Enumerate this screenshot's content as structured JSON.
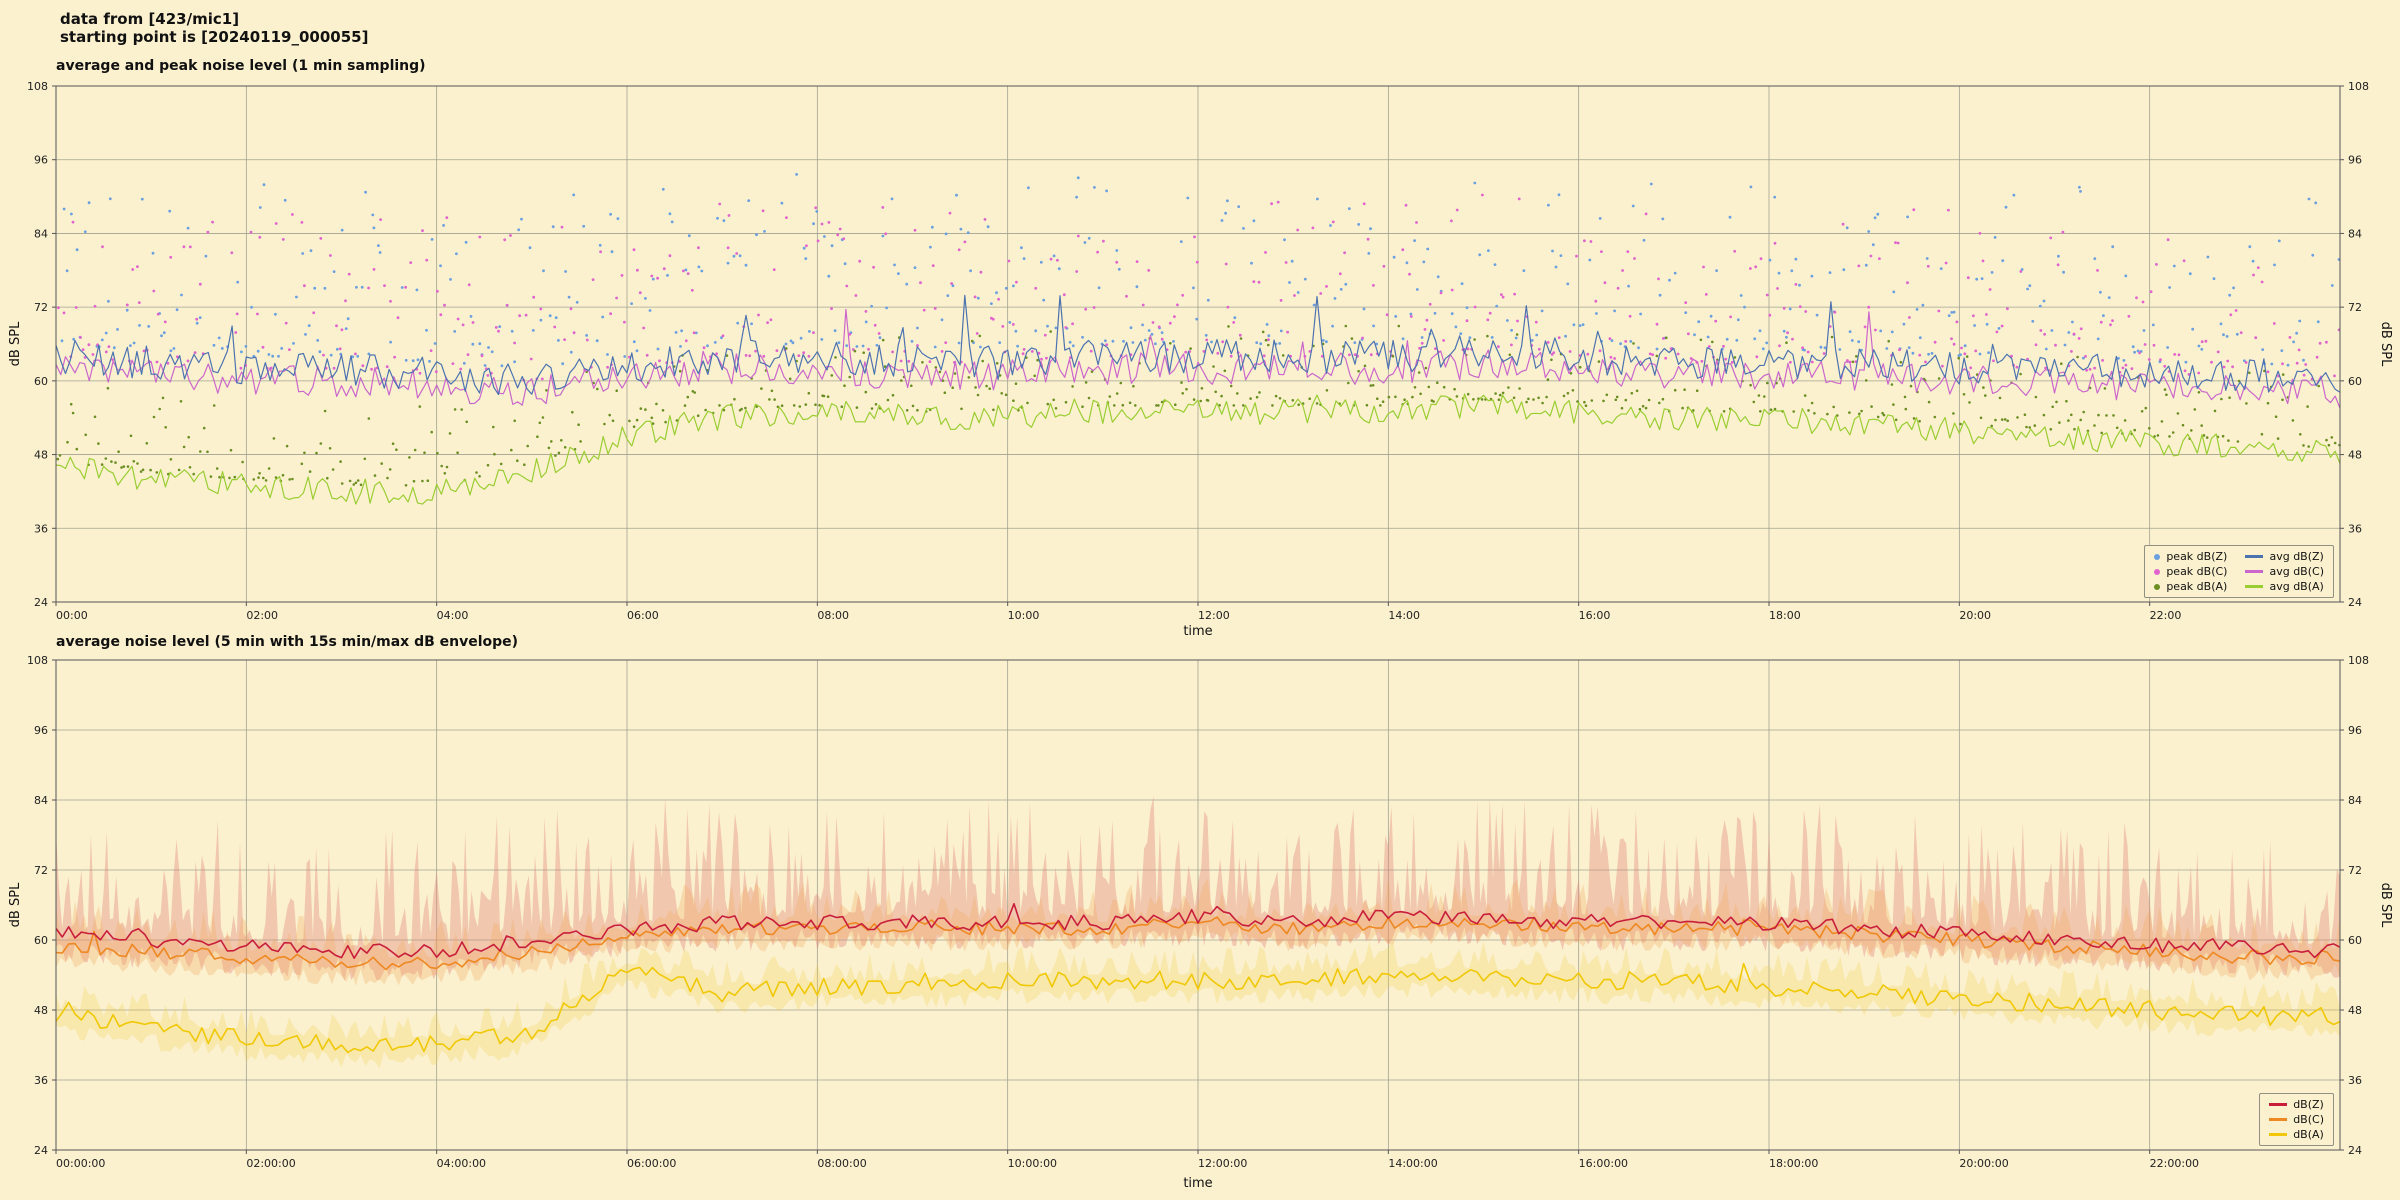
{
  "header": {
    "line1": "data from [423/mic1]",
    "line2": "starting point is [20240119_000055]"
  },
  "chart_data": [
    {
      "type": "line",
      "title": "average and peak noise level (1 min sampling)",
      "xlabel": "time",
      "ylabel": "dB SPL",
      "ylim": [
        24,
        108
      ],
      "y_ticks": [
        24,
        36,
        48,
        60,
        72,
        84,
        96,
        108
      ],
      "x_range_minutes": [
        0,
        1440
      ],
      "x_tick_labels": [
        "00:00",
        "02:00",
        "04:00",
        "06:00",
        "08:00",
        "10:00",
        "12:00",
        "14:00",
        "16:00",
        "18:00",
        "20:00",
        "22:00"
      ],
      "grid": true,
      "legend_position": "lower right",
      "series": [
        {
          "name": "peak dB(Z)",
          "type": "scatter",
          "color": "#6C9FE0",
          "radius": 1.4,
          "step": 2,
          "drop": 0.25,
          "offset_min": 2,
          "offset_max": 30,
          "skew": 2.1,
          "base": "avg dB(Z)"
        },
        {
          "name": "peak dB(C)",
          "type": "scatter",
          "color": "#E263CE",
          "radius": 1.4,
          "step": 2,
          "drop": 0.25,
          "offset_min": 2,
          "offset_max": 28,
          "skew": 2.2,
          "base": "avg dB(C)"
        },
        {
          "name": "peak dB(A)",
          "type": "scatter",
          "color": "#6B8E23",
          "radius": 1.3,
          "step": 2,
          "drop": 0.2,
          "offset_min": 1,
          "offset_max": 14,
          "skew": 2.4,
          "base": "avg dB(A)"
        },
        {
          "name": "avg dB(A)",
          "type": "line",
          "color": "#9ACD32",
          "width": 1.2,
          "step": 3,
          "jitter": 2.1,
          "spike_prob": 0.02,
          "spike_amp": 8,
          "anchors": [
            46,
            44,
            43,
            42,
            42,
            45,
            51,
            54,
            55,
            54,
            54,
            55,
            55,
            55,
            55,
            56,
            55,
            54,
            54,
            53,
            52,
            51,
            50,
            49,
            48
          ]
        },
        {
          "name": "avg dB(C)",
          "type": "line",
          "color": "#CC66CC",
          "width": 1.2,
          "step": 3,
          "jitter": 2.6,
          "spike_prob": 0.03,
          "spike_amp": 9,
          "anchors": [
            62,
            61,
            60,
            60,
            59,
            58,
            60,
            62,
            62,
            61,
            61,
            62,
            62,
            62,
            62,
            63,
            62,
            61,
            61,
            61,
            60,
            60,
            59,
            59,
            58
          ]
        },
        {
          "name": "avg dB(Z)",
          "type": "line",
          "color": "#4C72B0",
          "width": 1.2,
          "step": 3,
          "jitter": 2.8,
          "spike_prob": 0.035,
          "spike_amp": 12,
          "anchors": [
            64,
            63,
            62,
            62,
            61,
            60,
            62,
            64,
            64,
            63,
            63,
            64,
            64,
            64,
            64,
            65,
            64,
            63,
            63,
            63,
            62,
            62,
            61,
            61,
            60
          ]
        }
      ],
      "legend": [
        {
          "label": "peak dB(Z)",
          "marker": "dot",
          "color": "#6C9FE0"
        },
        {
          "label": "peak dB(C)",
          "marker": "dot",
          "color": "#E263CE"
        },
        {
          "label": "peak dB(A)",
          "marker": "dot",
          "color": "#6B8E23"
        },
        {
          "label": "avg dB(Z)",
          "marker": "line",
          "color": "#4C72B0"
        },
        {
          "label": "avg dB(C)",
          "marker": "line",
          "color": "#CC66CC"
        },
        {
          "label": "avg dB(A)",
          "marker": "line",
          "color": "#9ACD32"
        }
      ]
    },
    {
      "type": "line",
      "title": "average noise level (5 min with 15s min/max dB envelope)",
      "xlabel": "time",
      "ylabel": "dB SPL",
      "ylim": [
        24,
        108
      ],
      "y_ticks": [
        24,
        36,
        48,
        60,
        72,
        84,
        96,
        108
      ],
      "x_range_minutes": [
        0,
        1440
      ],
      "x_tick_labels": [
        "00:00:00",
        "02:00:00",
        "04:00:00",
        "06:00:00",
        "08:00:00",
        "10:00:00",
        "12:00:00",
        "14:00:00",
        "16:00:00",
        "18:00:00",
        "20:00:00",
        "22:00:00"
      ],
      "grid": true,
      "legend_position": "lower right",
      "series": [
        {
          "name": "dB(Z) envelope",
          "type": "band",
          "color": "#E2837A",
          "opacity": 0.38,
          "step": 2,
          "up_amp": 21,
          "up_skew": 2.6,
          "down_amp": 4,
          "base": "dB(Z)"
        },
        {
          "name": "dB(C) envelope",
          "type": "band",
          "color": "#F2A95C",
          "opacity": 0.3,
          "step": 3,
          "up_amp": 7,
          "up_skew": 2.2,
          "down_amp": 3,
          "base": "dB(C)"
        },
        {
          "name": "dB(A) envelope",
          "type": "band",
          "color": "#F2D24E",
          "opacity": 0.28,
          "step": 3,
          "up_amp": 5,
          "up_skew": 2.2,
          "down_amp": 3,
          "base": "dB(A)"
        },
        {
          "name": "dB(A)",
          "type": "line",
          "color": "#F0C808",
          "width": 1.6,
          "step": 4,
          "jitter": 1.6,
          "spike_prob": 0.02,
          "spike_amp": 4,
          "anchors": [
            47,
            45,
            43,
            42,
            42,
            44,
            55,
            51,
            52,
            52,
            53,
            53,
            53,
            53,
            54,
            54,
            53,
            53,
            52,
            51,
            50,
            49,
            48,
            47,
            47
          ]
        },
        {
          "name": "dB(C)",
          "type": "line",
          "color": "#EE8822",
          "width": 1.6,
          "step": 4,
          "jitter": 1.2,
          "spike_prob": 0.02,
          "spike_amp": 3,
          "anchors": [
            59,
            58,
            57,
            56,
            56,
            58,
            61,
            62,
            62,
            62,
            62,
            62,
            63,
            62,
            63,
            63,
            62,
            62,
            62,
            61,
            60,
            59,
            58,
            57,
            57
          ]
        },
        {
          "name": "dB(Z)",
          "type": "line",
          "color": "#C81E3C",
          "width": 1.6,
          "step": 4,
          "jitter": 1.3,
          "spike_prob": 0.03,
          "spike_amp": 4,
          "anchors": [
            61,
            60,
            59,
            58,
            58,
            60,
            62,
            63,
            63,
            63,
            63,
            63,
            64,
            63,
            64,
            64,
            63,
            63,
            63,
            62,
            61,
            60,
            59,
            59,
            58
          ]
        }
      ],
      "legend": [
        {
          "label": "dB(Z)",
          "marker": "line",
          "color": "#C81E3C"
        },
        {
          "label": "dB(C)",
          "marker": "line",
          "color": "#EE8822"
        },
        {
          "label": "dB(A)",
          "marker": "line",
          "color": "#F0C808"
        }
      ]
    }
  ],
  "colors": {
    "figure_background": "#FBF1CF",
    "grid": "#A3A291",
    "spine": "#555555"
  }
}
